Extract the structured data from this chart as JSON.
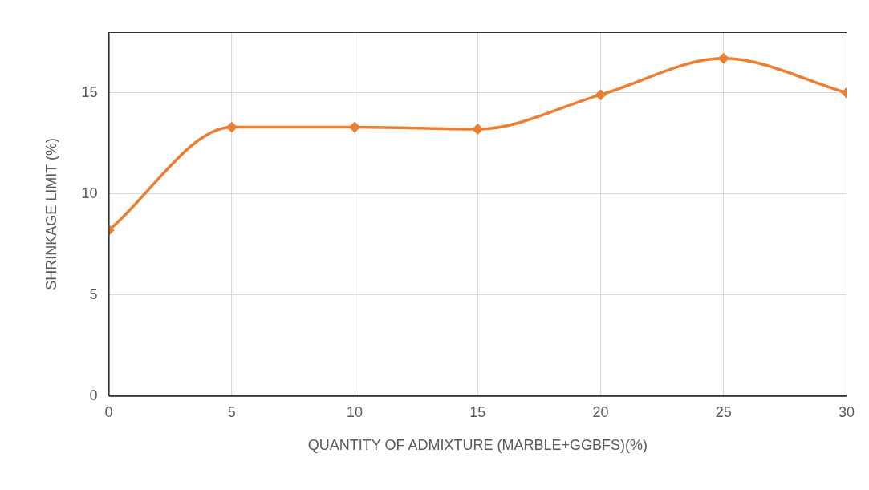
{
  "chart_data": {
    "type": "line",
    "xlabel": "QUANTITY OF ADMIXTURE (MARBLE+GGBFS)(%)",
    "ylabel": "SHRINKAGE LIMIT (%)",
    "x": [
      0,
      5,
      10,
      15,
      20,
      25,
      30
    ],
    "series": [
      {
        "color": "#ed7d31",
        "values": [
          8.2,
          13.3,
          13.3,
          13.2,
          14.9,
          16.7,
          15.0
        ]
      }
    ],
    "xlim": [
      0,
      30
    ],
    "xticks": [
      0,
      5,
      10,
      15,
      20,
      25,
      30
    ],
    "ylim": [
      0,
      18
    ],
    "yticks": [
      0,
      5,
      10,
      15
    ],
    "grid": true,
    "legend": false,
    "marker": "diamond",
    "line_style": "solid"
  }
}
